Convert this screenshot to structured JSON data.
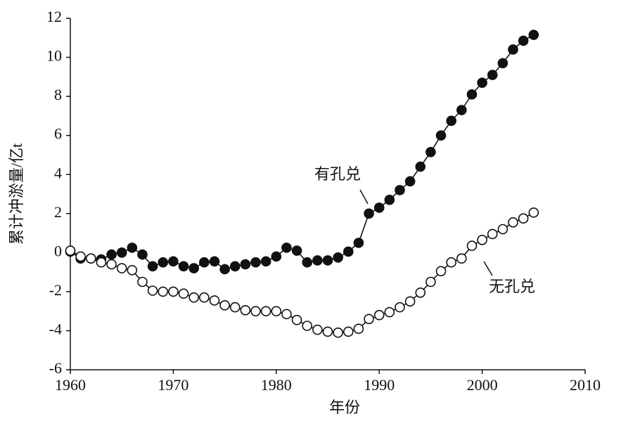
{
  "chart_data": {
    "type": "line",
    "x_label": "年份",
    "y_label": "累计冲淤量/亿t",
    "x": [
      1960,
      1961,
      1962,
      1963,
      1964,
      1965,
      1966,
      1967,
      1968,
      1969,
      1970,
      1971,
      1972,
      1973,
      1974,
      1975,
      1976,
      1977,
      1978,
      1979,
      1980,
      1981,
      1982,
      1983,
      1984,
      1985,
      1986,
      1987,
      1988,
      1989,
      1990,
      1991,
      1992,
      1993,
      1994,
      1995,
      1996,
      1997,
      1998,
      1999,
      2000,
      2001,
      2002,
      2003,
      2004,
      2005
    ],
    "series": [
      {
        "name": "有孔兑",
        "color": "#111111",
        "marker": "filled",
        "values": [
          0.05,
          -0.3,
          -0.3,
          -0.35,
          -0.1,
          0.0,
          0.25,
          -0.1,
          -0.7,
          -0.5,
          -0.45,
          -0.7,
          -0.8,
          -0.5,
          -0.45,
          -0.85,
          -0.7,
          -0.6,
          -0.5,
          -0.45,
          -0.2,
          0.25,
          0.1,
          -0.5,
          -0.4,
          -0.4,
          -0.25,
          0.05,
          0.5,
          2.0,
          2.3,
          2.7,
          3.2,
          3.65,
          4.4,
          5.15,
          6.0,
          6.75,
          7.3,
          8.1,
          8.7,
          9.1,
          9.7,
          10.4,
          10.85,
          11.15
        ]
      },
      {
        "name": "无孔兑",
        "color": "#111111",
        "marker": "hollow",
        "values": [
          0.1,
          -0.2,
          -0.3,
          -0.5,
          -0.6,
          -0.8,
          -0.9,
          -1.5,
          -1.95,
          -2.0,
          -2.0,
          -2.1,
          -2.3,
          -2.3,
          -2.45,
          -2.7,
          -2.8,
          -2.95,
          -3.0,
          -3.0,
          -3.0,
          -3.15,
          -3.45,
          -3.75,
          -3.95,
          -4.05,
          -4.1,
          -4.05,
          -3.9,
          -3.4,
          -3.2,
          -3.05,
          -2.8,
          -2.5,
          -2.05,
          -1.5,
          -0.95,
          -0.5,
          -0.3,
          0.35,
          0.65,
          0.95,
          1.2,
          1.55,
          1.75,
          2.05
        ]
      }
    ],
    "xlim": [
      1960,
      2010
    ],
    "xticks": [
      1960,
      1970,
      1980,
      1990,
      2000,
      2010
    ],
    "ylim": [
      -6,
      12
    ],
    "yticks": [
      -6,
      -4,
      -2,
      0,
      2,
      4,
      6,
      8,
      10,
      12
    ],
    "grid": false
  }
}
